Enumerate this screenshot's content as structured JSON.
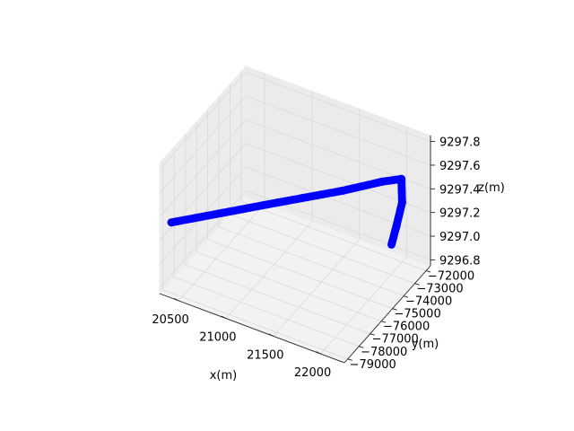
{
  "chart_data": {
    "type": "scatter",
    "projection": "3d",
    "title": "",
    "xlabel": "x(m)",
    "ylabel": "y(m)",
    "zlabel": "z(m)",
    "xlim": [
      20300,
      22250
    ],
    "ylim": [
      -79300,
      -71600
    ],
    "zlim": [
      9296.75,
      9297.85
    ],
    "xticks": [
      20500,
      21000,
      21500,
      22000
    ],
    "xtick_labels": [
      "20500",
      "21000",
      "21500",
      "22000"
    ],
    "yticks": [
      -79000,
      -78000,
      -77000,
      -76000,
      -75000,
      -74000,
      -73000,
      -72000
    ],
    "ytick_labels": [
      "−79000",
      "−78000",
      "−77000",
      "−76000",
      "−75000",
      "−74000",
      "−73000",
      "−72000"
    ],
    "zticks": [
      9296.8,
      9297.0,
      9297.2,
      9297.4,
      9297.6,
      9297.8
    ],
    "ztick_labels": [
      "9296.8",
      "9297.0",
      "9297.2",
      "9297.4",
      "9297.6",
      "9297.8"
    ],
    "grid": true,
    "pane_color": "#f2f2f2",
    "grid_color": "#d9d9d9",
    "series": [
      {
        "color": "#ff0000",
        "points": [
          [
            20400,
            -79100,
            9297.36
          ]
        ]
      },
      {
        "color": "#0000ff",
        "points": [
          [
            20400,
            -79100,
            9297.36
          ],
          [
            21200,
            -76400,
            9297.48
          ],
          [
            21700,
            -74800,
            9297.56
          ],
          [
            22000,
            -73800,
            9297.62
          ],
          [
            22150,
            -73350,
            9297.64
          ],
          [
            22080,
            -72700,
            9297.35
          ],
          [
            21950,
            -72100,
            9297.05
          ],
          [
            21850,
            -71700,
            9296.82
          ]
        ]
      }
    ]
  }
}
